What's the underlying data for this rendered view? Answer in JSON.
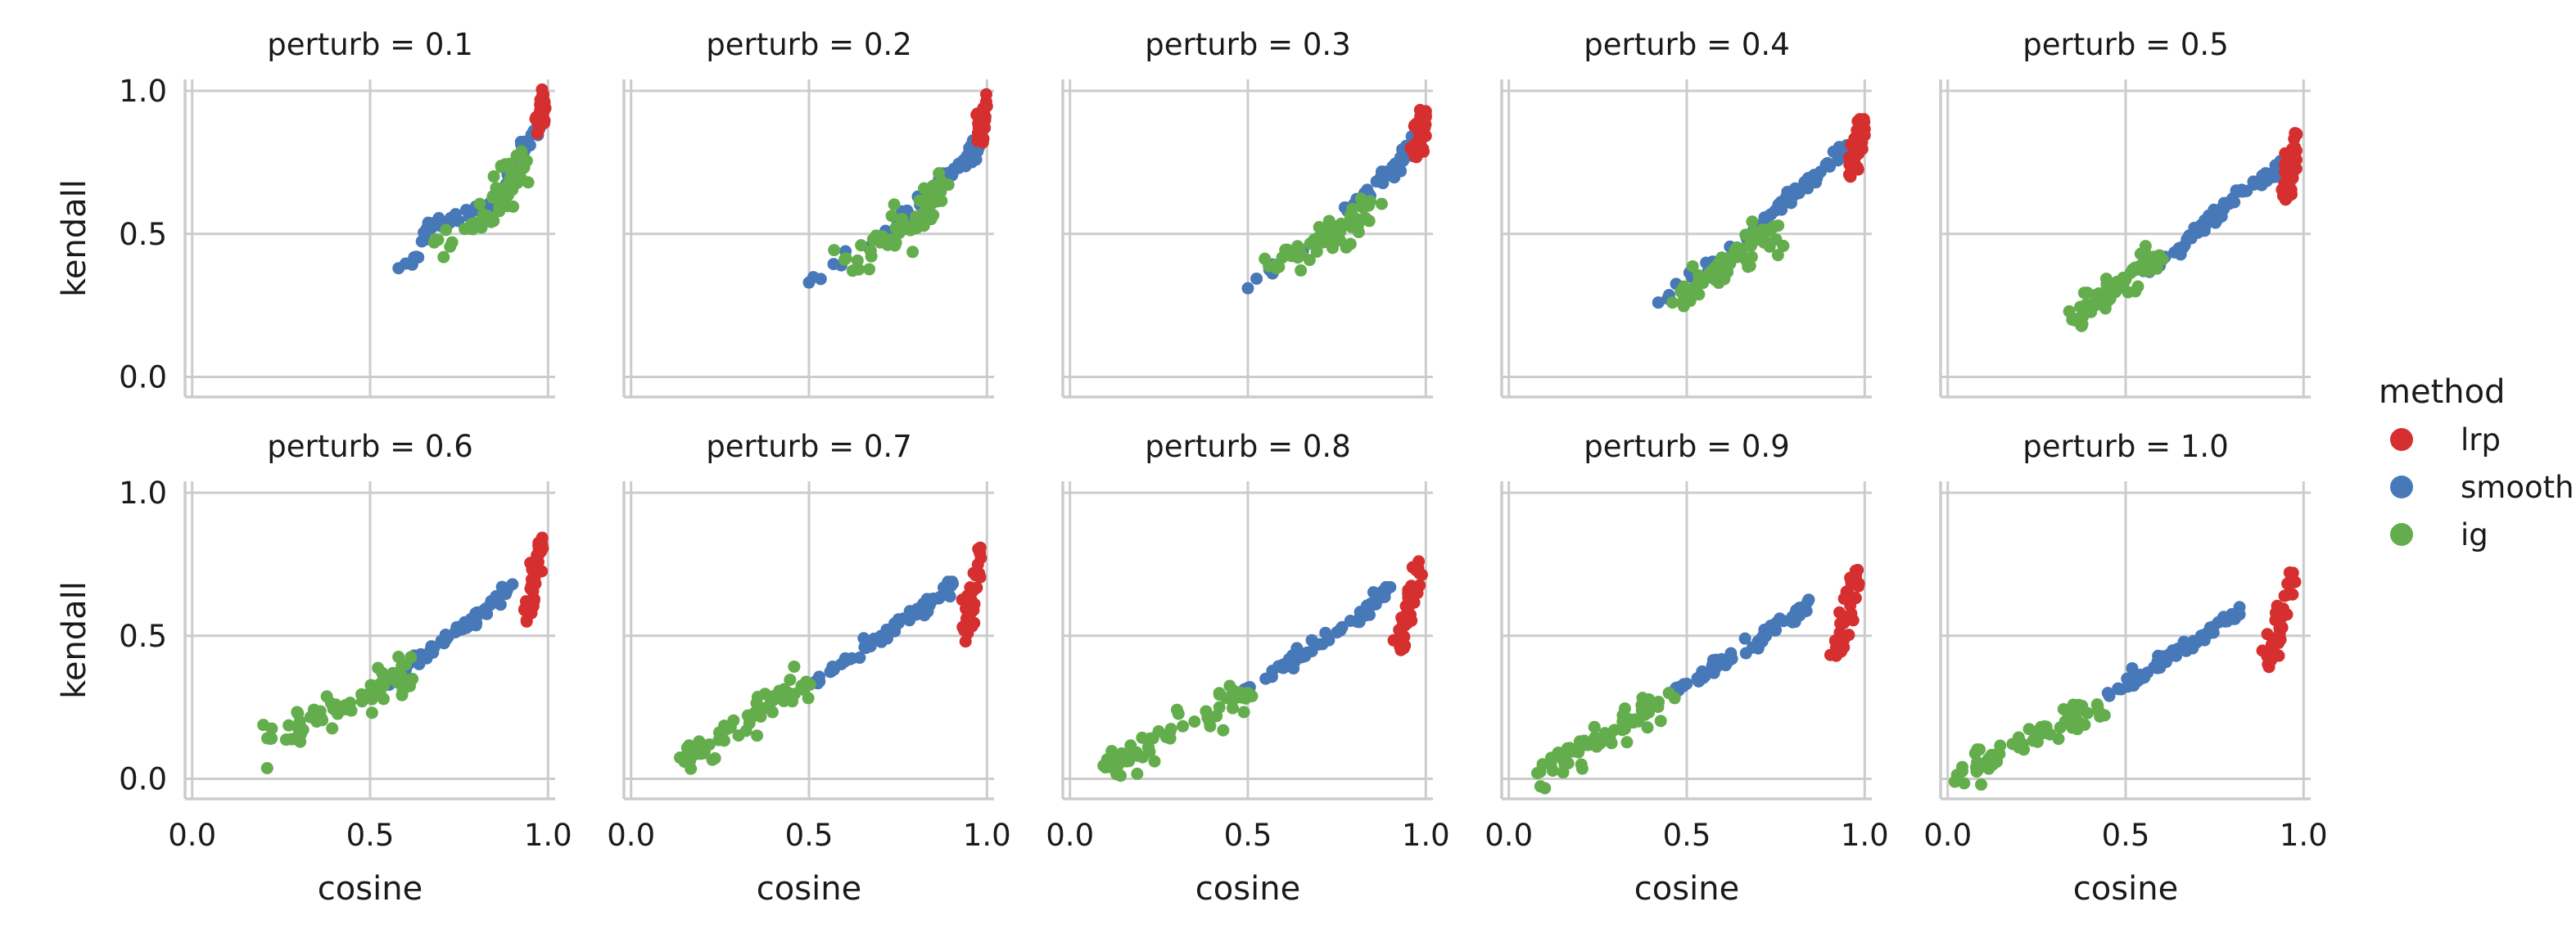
{
  "chart_data": {
    "type": "scatter",
    "xlabel": "cosine",
    "ylabel": "kendall",
    "xlim": [
      -0.02,
      1.02
    ],
    "ylim": [
      -0.07,
      1.04
    ],
    "xticks": [
      "0.0",
      "0.5",
      "1.0"
    ],
    "yticks": [
      "0.0",
      "0.5",
      "1.0"
    ],
    "grid": true,
    "legend": {
      "title": "method",
      "placement": "right",
      "entries": [
        {
          "label": "lrp",
          "color": "#d62f2f"
        },
        {
          "label": "smooth",
          "color": "#4778b8"
        },
        {
          "label": "ig",
          "color": "#64ad4d"
        }
      ]
    },
    "facets": [
      {
        "title": "perturb = 0.1",
        "series": {
          "lrp": {
            "cx": [
              0.98,
              0.99
            ],
            "cy": [
              0.9,
              0.96
            ]
          },
          "smooth": {
            "cx": [
              0.58,
              0.63,
              0.66,
              0.73,
              0.78,
              0.85,
              0.9,
              0.93,
              0.96,
              0.98
            ],
            "cy": [
              0.38,
              0.42,
              0.52,
              0.55,
              0.58,
              0.6,
              0.72,
              0.8,
              0.86,
              0.9
            ]
          },
          "ig": {
            "cx": [
              0.68,
              0.82,
              0.87,
              0.9,
              0.93
            ],
            "cy": [
              0.47,
              0.55,
              0.64,
              0.7,
              0.76
            ]
          }
        }
      },
      {
        "title": "perturb = 0.2",
        "series": {
          "lrp": {
            "cx": [
              0.98,
              0.99
            ],
            "cy": [
              0.84,
              0.94
            ]
          },
          "smooth": {
            "cx": [
              0.5,
              0.72,
              0.78,
              0.84,
              0.88,
              0.92,
              0.95,
              0.98
            ],
            "cy": [
              0.33,
              0.5,
              0.57,
              0.63,
              0.68,
              0.73,
              0.77,
              0.84
            ]
          },
          "ig": {
            "cx": [
              0.6,
              0.7,
              0.76,
              0.8,
              0.84,
              0.88
            ],
            "cy": [
              0.41,
              0.47,
              0.52,
              0.56,
              0.61,
              0.67
            ]
          }
        }
      },
      {
        "title": "perturb = 0.3",
        "series": {
          "lrp": {
            "cx": [
              0.97,
              0.99
            ],
            "cy": [
              0.77,
              0.92
            ]
          },
          "smooth": {
            "cx": [
              0.5,
              0.78,
              0.84,
              0.88,
              0.92,
              0.95,
              0.98
            ],
            "cy": [
              0.31,
              0.58,
              0.64,
              0.69,
              0.74,
              0.78,
              0.84
            ]
          },
          "ig": {
            "cx": [
              0.58,
              0.65,
              0.7,
              0.75,
              0.8,
              0.84
            ],
            "cy": [
              0.38,
              0.43,
              0.47,
              0.51,
              0.55,
              0.6
            ]
          }
        }
      },
      {
        "title": "perturb = 0.4",
        "series": {
          "lrp": {
            "cx": [
              0.96,
              0.99
            ],
            "cy": [
              0.7,
              0.89
            ]
          },
          "smooth": {
            "cx": [
              0.42,
              0.72,
              0.78,
              0.84,
              0.9,
              0.95
            ],
            "cy": [
              0.26,
              0.55,
              0.63,
              0.68,
              0.74,
              0.81
            ]
          },
          "ig": {
            "cx": [
              0.46,
              0.52,
              0.58,
              0.64,
              0.7,
              0.74
            ],
            "cy": [
              0.26,
              0.31,
              0.37,
              0.42,
              0.48,
              0.52
            ]
          }
        }
      },
      {
        "title": "perturb = 0.5",
        "series": {
          "lrp": {
            "cx": [
              0.95,
              0.98
            ],
            "cy": [
              0.63,
              0.85
            ]
          },
          "smooth": {
            "cx": [
              0.55,
              0.65,
              0.72,
              0.78,
              0.84,
              0.9,
              0.95
            ],
            "cy": [
              0.37,
              0.45,
              0.53,
              0.6,
              0.65,
              0.7,
              0.75
            ]
          },
          "ig": {
            "cx": [
              0.35,
              0.4,
              0.45,
              0.5,
              0.55,
              0.58
            ],
            "cy": [
              0.2,
              0.25,
              0.3,
              0.34,
              0.38,
              0.42
            ]
          }
        }
      },
      {
        "title": "perturb = 0.6",
        "series": {
          "lrp": {
            "cx": [
              0.94,
              0.98
            ],
            "cy": [
              0.55,
              0.82
            ]
          },
          "smooth": {
            "cx": [
              0.5,
              0.6,
              0.67,
              0.75,
              0.8,
              0.86,
              0.9
            ],
            "cy": [
              0.3,
              0.38,
              0.45,
              0.52,
              0.57,
              0.63,
              0.68
            ]
          },
          "ig": {
            "cx": [
              0.22,
              0.3,
              0.35,
              0.42,
              0.5,
              0.58,
              0.6
            ],
            "cy": [
              0.14,
              0.17,
              0.2,
              0.25,
              0.3,
              0.36,
              0.4
            ]
          }
        }
      },
      {
        "title": "perturb = 0.7",
        "series": {
          "lrp": {
            "cx": [
              0.94,
              0.98
            ],
            "cy": [
              0.48,
              0.79
            ]
          },
          "smooth": {
            "cx": [
              0.5,
              0.6,
              0.67,
              0.73,
              0.8,
              0.85,
              0.9
            ],
            "cy": [
              0.33,
              0.41,
              0.47,
              0.52,
              0.58,
              0.63,
              0.68
            ]
          },
          "ig": {
            "cx": [
              0.15,
              0.22,
              0.28,
              0.35,
              0.42,
              0.5
            ],
            "cy": [
              0.06,
              0.12,
              0.18,
              0.23,
              0.28,
              0.33
            ]
          }
        }
      },
      {
        "title": "perturb = 0.8",
        "series": {
          "lrp": {
            "cx": [
              0.93,
              0.98
            ],
            "cy": [
              0.45,
              0.76
            ]
          },
          "smooth": {
            "cx": [
              0.45,
              0.55,
              0.62,
              0.7,
              0.76,
              0.82,
              0.86,
              0.9
            ],
            "cy": [
              0.28,
              0.35,
              0.41,
              0.47,
              0.52,
              0.57,
              0.63,
              0.67
            ]
          },
          "ig": {
            "cx": [
              0.1,
              0.15,
              0.22,
              0.28,
              0.35,
              0.42,
              0.5
            ],
            "cy": [
              0.04,
              0.07,
              0.11,
              0.16,
              0.2,
              0.25,
              0.3
            ]
          }
        }
      },
      {
        "title": "perturb = 0.9",
        "series": {
          "lrp": {
            "cx": [
              0.92,
              0.98
            ],
            "cy": [
              0.43,
              0.73
            ]
          },
          "smooth": {
            "cx": [
              0.45,
              0.55,
              0.62,
              0.7,
              0.75,
              0.8,
              0.84
            ],
            "cy": [
              0.3,
              0.37,
              0.42,
              0.48,
              0.52,
              0.56,
              0.62
            ]
          },
          "ig": {
            "cx": [
              0.08,
              0.15,
              0.2,
              0.27,
              0.32,
              0.38,
              0.45
            ],
            "cy": [
              0.02,
              0.07,
              0.11,
              0.16,
              0.2,
              0.24,
              0.3
            ]
          }
        }
      },
      {
        "title": "perturb = 1.0",
        "series": {
          "lrp": {
            "cx": [
              0.9,
              0.97
            ],
            "cy": [
              0.4,
              0.72
            ]
          },
          "smooth": {
            "cx": [
              0.45,
              0.52,
              0.58,
              0.65,
              0.72,
              0.78,
              0.82
            ],
            "cy": [
              0.3,
              0.34,
              0.39,
              0.45,
              0.5,
              0.55,
              0.6
            ]
          },
          "ig": {
            "cx": [
              0.02,
              0.08,
              0.13,
              0.2,
              0.27,
              0.33,
              0.42
            ],
            "cy": [
              -0.01,
              0.04,
              0.07,
              0.11,
              0.16,
              0.2,
              0.26
            ]
          }
        }
      }
    ]
  }
}
